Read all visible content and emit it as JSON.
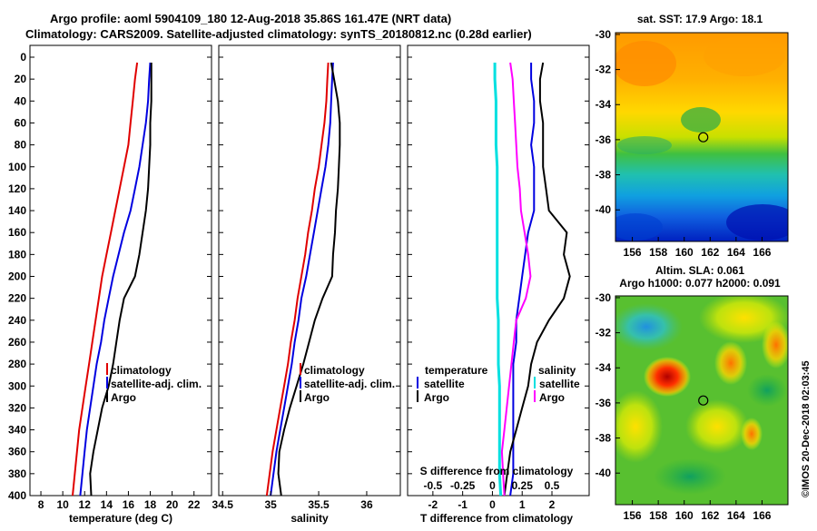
{
  "header": {
    "line1": "Argo profile: aoml 5904109_180 12-Aug-2018 35.86S 161.47E (NRT data)",
    "line2": "Climatology: CARS2009. Satellite-adjusted climatology: synTS_20180812.nc (0.28d earlier)"
  },
  "colors": {
    "climatology": "#e00000",
    "satellite": "#0000e0",
    "argo": "#000000",
    "t_diff": "#ff00ff",
    "s_diff": "#00e0e0"
  },
  "depth_axis": {
    "ticks": [
      0,
      20,
      40,
      60,
      80,
      100,
      120,
      140,
      160,
      180,
      200,
      220,
      240,
      260,
      280,
      300,
      320,
      340,
      360,
      380,
      400
    ],
    "range": [
      0,
      400
    ]
  },
  "temperature_panel": {
    "xlabel": "temperature (deg C)",
    "xlim": [
      7,
      23.6
    ],
    "xticks": [
      8,
      10,
      12,
      14,
      16,
      18,
      20,
      22
    ],
    "legend": [
      "climatology",
      "satellite-adj. clim.",
      "Argo"
    ]
  },
  "salinity_panel": {
    "xlabel": "salinity",
    "xlim": [
      34.46,
      36.35
    ],
    "xticks": [
      34.5,
      35,
      35.5,
      36
    ],
    "xtick_labels": [
      "34.5",
      "35",
      "35.5",
      "36"
    ],
    "legend": [
      "climatology",
      "satellite-adj. clim.",
      "Argo"
    ]
  },
  "difference_panel": {
    "xlabel": "T difference from climatology",
    "s_label": "S difference from climatology",
    "xlim": [
      -2.85,
      3.25
    ],
    "t_ticks": [
      -2,
      -1,
      0,
      1,
      2
    ],
    "s_tick_labels": [
      "-0.5",
      "-0.25",
      "0",
      "0.25",
      "0.5"
    ],
    "legend_left": {
      "title": "temperature",
      "items": [
        "satellite",
        "Argo"
      ]
    },
    "legend_right": {
      "title": "salinity",
      "items": [
        "satellite",
        "Argo"
      ]
    }
  },
  "sst_map": {
    "title": "sat. SST: 17.9 Argo: 18.1",
    "lon_ticks": [
      156,
      158,
      160,
      162,
      164,
      166
    ],
    "lat_ticks": [
      -30,
      -32,
      -34,
      -36,
      -38,
      -40
    ],
    "profile_position": {
      "lon": 161.47,
      "lat": -35.86
    }
  },
  "sla_map": {
    "title1": "Altim. SLA: 0.061",
    "title2": "Argo h1000: 0.077 h2000: 0.091",
    "lon_ticks": [
      156,
      158,
      160,
      162,
      164,
      166
    ],
    "lat_ticks": [
      -30,
      -32,
      -34,
      -36,
      -38,
      -40
    ],
    "profile_position": {
      "lon": 161.47,
      "lat": -35.86
    }
  },
  "footer": {
    "credit": "©IMOS 20-Dec-2018 02:03:45"
  },
  "chart_data": [
    {
      "type": "line",
      "title": "temperature",
      "xlabel": "temperature (deg C)",
      "ylabel": "depth",
      "ylim": [
        0,
        400
      ],
      "series": [
        {
          "name": "climatology",
          "x": [
            16.8,
            16.6,
            16.4,
            16.2,
            16.0,
            15.6,
            15.2,
            14.8,
            14.4,
            14.0,
            13.6,
            13.3,
            13.0,
            12.7,
            12.4,
            12.1,
            11.8,
            11.5,
            11.3,
            11.1,
            10.9
          ],
          "y": [
            5,
            20,
            40,
            60,
            80,
            100,
            120,
            140,
            160,
            180,
            200,
            220,
            240,
            260,
            280,
            300,
            320,
            340,
            360,
            380,
            400
          ]
        },
        {
          "name": "satellite-adj. clim.",
          "x": [
            18.0,
            17.9,
            17.8,
            17.6,
            17.3,
            17.0,
            16.6,
            16.2,
            15.6,
            15.1,
            14.6,
            14.2,
            13.8,
            13.5,
            13.1,
            12.8,
            12.5,
            12.2,
            12.0,
            11.8,
            11.6
          ],
          "y": [
            5,
            20,
            40,
            60,
            80,
            100,
            120,
            140,
            160,
            180,
            200,
            220,
            240,
            260,
            280,
            300,
            320,
            340,
            360,
            380,
            400
          ]
        },
        {
          "name": "Argo",
          "x": [
            18.1,
            18.1,
            18.1,
            18.0,
            18.0,
            17.9,
            17.8,
            17.6,
            17.3,
            17.0,
            16.6,
            15.6,
            15.2,
            14.9,
            14.6,
            14.2,
            13.6,
            13.2,
            12.8,
            12.5,
            12.6
          ],
          "y": [
            5,
            20,
            40,
            60,
            80,
            100,
            120,
            140,
            160,
            180,
            200,
            220,
            240,
            260,
            280,
            300,
            320,
            340,
            360,
            380,
            400
          ]
        }
      ]
    },
    {
      "type": "line",
      "title": "salinity",
      "xlabel": "salinity",
      "ylabel": "depth",
      "ylim": [
        0,
        400
      ],
      "series": [
        {
          "name": "climatology",
          "x": [
            35.6,
            35.59,
            35.58,
            35.56,
            35.53,
            35.5,
            35.46,
            35.43,
            35.39,
            35.36,
            35.32,
            35.28,
            35.25,
            35.21,
            35.18,
            35.14,
            35.1,
            35.06,
            35.02,
            34.99,
            34.96
          ],
          "y": [
            5,
            20,
            40,
            60,
            80,
            100,
            120,
            140,
            160,
            180,
            200,
            220,
            240,
            260,
            280,
            300,
            320,
            340,
            360,
            380,
            400
          ]
        },
        {
          "name": "satellite-adj. clim.",
          "x": [
            35.65,
            35.64,
            35.63,
            35.62,
            35.6,
            35.57,
            35.53,
            35.49,
            35.45,
            35.41,
            35.37,
            35.32,
            35.29,
            35.25,
            35.22,
            35.18,
            35.14,
            35.1,
            35.06,
            35.03,
            35.0
          ],
          "y": [
            5,
            20,
            40,
            60,
            80,
            100,
            120,
            140,
            160,
            180,
            200,
            220,
            240,
            260,
            280,
            300,
            320,
            340,
            360,
            380,
            400
          ]
        },
        {
          "name": "Argo",
          "x": [
            35.63,
            35.66,
            35.7,
            35.72,
            35.72,
            35.71,
            35.7,
            35.68,
            35.67,
            35.65,
            35.64,
            35.54,
            35.46,
            35.4,
            35.34,
            35.27,
            35.2,
            35.14,
            35.09,
            35.08,
            35.11
          ],
          "y": [
            5,
            20,
            40,
            60,
            80,
            100,
            120,
            140,
            160,
            180,
            200,
            220,
            240,
            260,
            280,
            300,
            320,
            340,
            360,
            380,
            400
          ]
        }
      ]
    },
    {
      "type": "line",
      "title": "difference from climatology",
      "xlabel": "T difference from climatology",
      "ylabel": "depth",
      "ylim": [
        0,
        400
      ],
      "series": [
        {
          "name": "temperature satellite",
          "x": [
            1.3,
            1.3,
            1.4,
            1.4,
            1.3,
            1.4,
            1.4,
            1.4,
            1.2,
            1.1,
            1.0,
            0.9,
            0.8,
            0.8,
            0.7,
            0.7,
            0.7,
            0.7,
            0.7,
            0.7,
            0.6
          ],
          "y": [
            5,
            20,
            40,
            60,
            80,
            100,
            120,
            140,
            160,
            180,
            200,
            220,
            240,
            260,
            280,
            300,
            320,
            340,
            360,
            380,
            400
          ]
        },
        {
          "name": "temperature Argo",
          "x": [
            1.7,
            1.6,
            1.6,
            1.7,
            1.7,
            1.7,
            1.8,
            1.9,
            2.5,
            2.4,
            2.6,
            2.4,
            1.9,
            1.5,
            1.3,
            1.2,
            1.0,
            0.8,
            0.6,
            0.5,
            0.4
          ],
          "y": [
            5,
            20,
            40,
            60,
            80,
            100,
            120,
            140,
            160,
            180,
            200,
            220,
            240,
            260,
            280,
            300,
            320,
            340,
            360,
            380,
            400
          ]
        },
        {
          "name": "salinity satellite",
          "x": [
            0.02,
            0.02,
            0.03,
            0.03,
            0.03,
            0.04,
            0.04,
            0.04,
            0.04,
            0.04,
            0.04,
            0.04,
            0.05,
            0.05,
            0.05,
            0.06,
            0.06,
            0.06,
            0.06,
            0.06,
            0.07
          ],
          "y": [
            5,
            20,
            40,
            60,
            80,
            100,
            120,
            140,
            160,
            180,
            200,
            220,
            240,
            260,
            280,
            300,
            320,
            340,
            360,
            380,
            400
          ]
        },
        {
          "name": "salinity Argo",
          "x": [
            0.15,
            0.17,
            0.18,
            0.19,
            0.2,
            0.21,
            0.23,
            0.24,
            0.27,
            0.3,
            0.32,
            0.28,
            0.2,
            0.18,
            0.16,
            0.14,
            0.12,
            0.1,
            0.08,
            0.09,
            0.1
          ],
          "y": [
            5,
            20,
            40,
            60,
            80,
            100,
            120,
            140,
            160,
            180,
            200,
            220,
            240,
            260,
            280,
            300,
            320,
            340,
            360,
            380,
            400
          ]
        }
      ]
    }
  ]
}
